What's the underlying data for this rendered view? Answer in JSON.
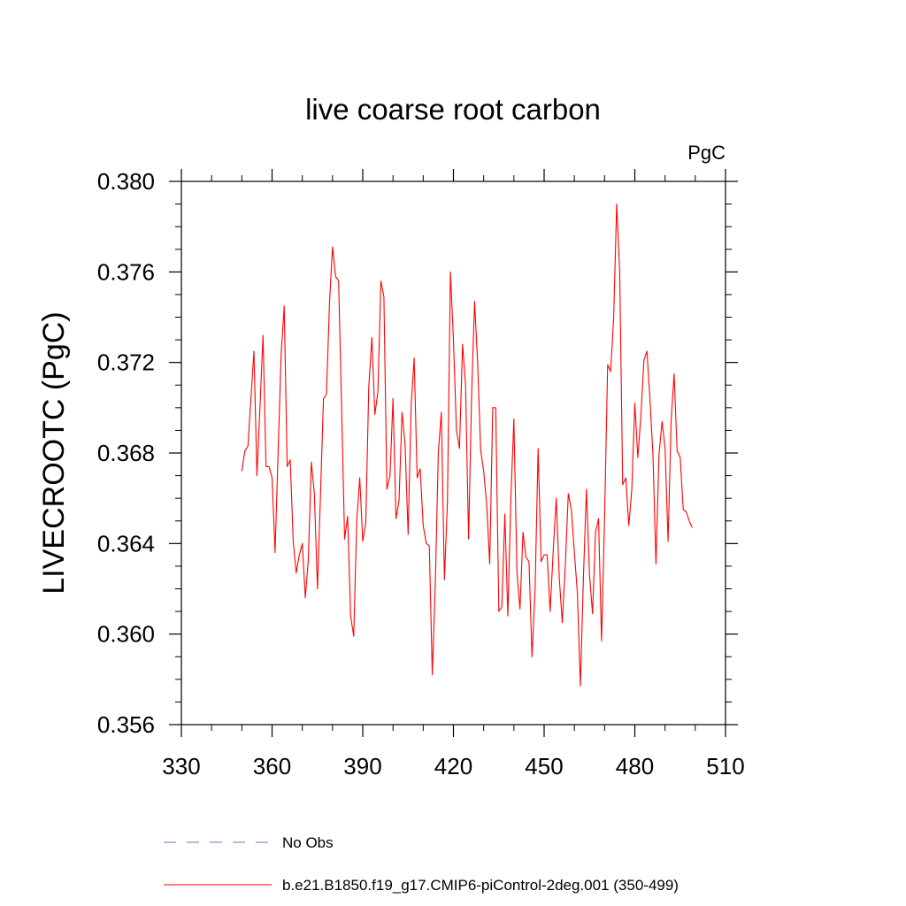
{
  "chart_data": {
    "type": "line",
    "title": "live coarse root carbon",
    "units_label": "PgC",
    "xlabel": "",
    "ylabel": "LIVECROOTC  (PgC)",
    "xlim": [
      330,
      510
    ],
    "ylim": [
      0.356,
      0.38
    ],
    "xticks": [
      330,
      360,
      390,
      420,
      450,
      480,
      510
    ],
    "xtick_labels": [
      "330",
      "360",
      "390",
      "420",
      "450",
      "480",
      "510"
    ],
    "yticks": [
      0.356,
      0.36,
      0.364,
      0.368,
      0.372,
      0.376,
      0.38
    ],
    "ytick_labels": [
      "0.356",
      "0.360",
      "0.364",
      "0.368",
      "0.372",
      "0.376",
      "0.380"
    ],
    "grid": false,
    "legend": [
      {
        "label": "No Obs",
        "color": "#7b68c8",
        "style": "dashed"
      },
      {
        "label": "b.e21.B1850.f19_g17.CMIP6-piControl-2deg.001 (350-499)",
        "color": "#ff0000",
        "style": "solid"
      }
    ],
    "series": [
      {
        "name": "b.e21.B1850.f19_g17.CMIP6-piControl-2deg.001 (350-499)",
        "color": "#ff0000",
        "x": [
          350,
          351,
          352,
          353,
          354,
          355,
          356,
          357,
          358,
          359,
          360,
          361,
          362,
          363,
          364,
          365,
          366,
          367,
          368,
          369,
          370,
          371,
          372,
          373,
          374,
          375,
          376,
          377,
          378,
          379,
          380,
          381,
          382,
          383,
          384,
          385,
          386,
          387,
          388,
          389,
          390,
          391,
          392,
          393,
          394,
          395,
          396,
          397,
          398,
          399,
          400,
          401,
          402,
          403,
          404,
          405,
          406,
          407,
          408,
          409,
          410,
          411,
          412,
          413,
          414,
          415,
          416,
          417,
          418,
          419,
          420,
          421,
          422,
          423,
          424,
          425,
          426,
          427,
          428,
          429,
          430,
          431,
          432,
          433,
          434,
          435,
          436,
          437,
          438,
          439,
          440,
          441,
          442,
          443,
          444,
          445,
          446,
          447,
          448,
          449,
          450,
          451,
          452,
          453,
          454,
          455,
          456,
          457,
          458,
          459,
          460,
          461,
          462,
          463,
          464,
          465,
          466,
          467,
          468,
          469,
          470,
          471,
          472,
          473,
          474,
          475,
          476,
          477,
          478,
          479,
          480,
          481,
          482,
          483,
          484,
          485,
          486,
          487,
          488,
          489,
          490,
          491,
          492,
          493,
          494,
          495,
          496,
          497,
          498,
          499
        ],
        "y": [
          0.3672,
          0.3681,
          0.3683,
          0.3704,
          0.3725,
          0.367,
          0.37,
          0.3732,
          0.3674,
          0.3674,
          0.3669,
          0.3636,
          0.368,
          0.3724,
          0.3745,
          0.3674,
          0.3677,
          0.3641,
          0.3627,
          0.3635,
          0.364,
          0.3616,
          0.3633,
          0.3676,
          0.3662,
          0.362,
          0.3661,
          0.3704,
          0.3706,
          0.3746,
          0.3771,
          0.3758,
          0.3756,
          0.37,
          0.3642,
          0.3652,
          0.3608,
          0.3599,
          0.365,
          0.3669,
          0.3641,
          0.3649,
          0.3709,
          0.3731,
          0.3697,
          0.3707,
          0.3756,
          0.3749,
          0.3664,
          0.367,
          0.3704,
          0.3651,
          0.3659,
          0.3698,
          0.3684,
          0.3644,
          0.3701,
          0.3722,
          0.3669,
          0.3673,
          0.3648,
          0.364,
          0.3639,
          0.3582,
          0.3622,
          0.368,
          0.3698,
          0.3624,
          0.3658,
          0.376,
          0.373,
          0.369,
          0.3682,
          0.3728,
          0.371,
          0.3642,
          0.3705,
          0.3747,
          0.372,
          0.3681,
          0.3672,
          0.3657,
          0.3631,
          0.37,
          0.37,
          0.361,
          0.3612,
          0.3653,
          0.3608,
          0.366,
          0.3695,
          0.3627,
          0.3611,
          0.3645,
          0.3634,
          0.3632,
          0.359,
          0.362,
          0.3682,
          0.3632,
          0.3635,
          0.3635,
          0.361,
          0.3637,
          0.366,
          0.3625,
          0.3605,
          0.363,
          0.3662,
          0.3655,
          0.3636,
          0.3618,
          0.3577,
          0.3625,
          0.3664,
          0.3626,
          0.3609,
          0.3645,
          0.3651,
          0.3597,
          0.3651,
          0.3719,
          0.3716,
          0.374,
          0.379,
          0.376,
          0.3666,
          0.3669,
          0.3648,
          0.3664,
          0.3702,
          0.3678,
          0.3696,
          0.3721,
          0.3725,
          0.3704,
          0.3679,
          0.3631,
          0.3679,
          0.3694,
          0.3682,
          0.3641,
          0.3694,
          0.3715,
          0.3681,
          0.3678,
          0.3655,
          0.3654,
          0.365,
          0.3647
        ]
      }
    ]
  }
}
